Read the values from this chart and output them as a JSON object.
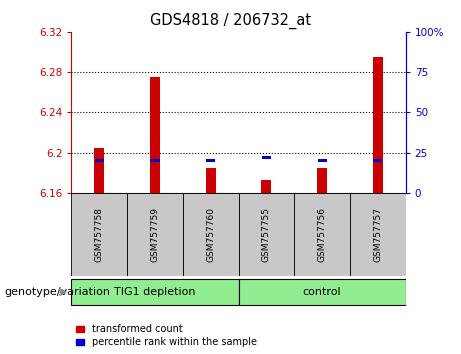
{
  "title": "GDS4818 / 206732_at",
  "samples": [
    "GSM757758",
    "GSM757759",
    "GSM757760",
    "GSM757755",
    "GSM757756",
    "GSM757757"
  ],
  "red_values": [
    6.205,
    6.275,
    6.185,
    6.173,
    6.185,
    6.295
  ],
  "blue_pct": [
    20,
    20,
    20,
    22,
    20,
    20
  ],
  "y_min": 6.16,
  "y_max": 6.32,
  "y_ticks_left": [
    6.16,
    6.2,
    6.24,
    6.28,
    6.32
  ],
  "y_ticks_right": [
    0,
    25,
    50,
    75,
    100
  ],
  "bar_width": 0.18,
  "red_color": "#CC0000",
  "blue_color": "#0000CC",
  "legend_red_label": "transformed count",
  "legend_blue_label": "percentile rank within the sample",
  "left_axis_color": "#CC0000",
  "right_axis_color": "#0000CC",
  "group_spans": [
    {
      "label": "TIG1 depletion",
      "start": 0,
      "end": 2
    },
    {
      "label": "control",
      "start": 3,
      "end": 5
    }
  ],
  "group_bg": "#90EE90",
  "sample_bg": "#C8C8C8",
  "xlabel": "genotype/variation"
}
